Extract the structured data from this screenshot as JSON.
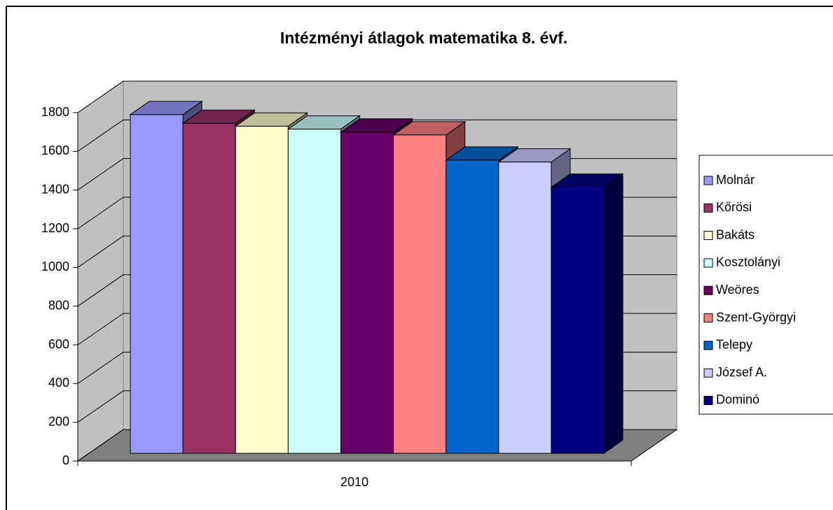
{
  "chart_data": {
    "type": "bar3d",
    "title": "Intézményi átlagok matematika 8. évf.",
    "categories": [
      "2010"
    ],
    "series": [
      {
        "name": "Molnár",
        "color": "#9999ff",
        "values": [
          1750
        ]
      },
      {
        "name": "Kőrösi",
        "color": "#993366",
        "values": [
          1705
        ]
      },
      {
        "name": "Bakáts",
        "color": "#ffffcc",
        "values": [
          1690
        ]
      },
      {
        "name": "Kosztolányi",
        "color": "#ccffff",
        "values": [
          1675
        ]
      },
      {
        "name": "Weöres",
        "color": "#660066",
        "values": [
          1660
        ]
      },
      {
        "name": "Szent-Györgyi",
        "color": "#ff8080",
        "values": [
          1645
        ]
      },
      {
        "name": "Telepy",
        "color": "#0066cc",
        "values": [
          1515
        ]
      },
      {
        "name": "József A.",
        "color": "#ccccff",
        "values": [
          1505
        ]
      },
      {
        "name": "Dominó",
        "color": "#000080",
        "values": [
          1375
        ]
      }
    ],
    "ylim": [
      0,
      1800
    ],
    "yticks": [
      0,
      200,
      400,
      600,
      800,
      1000,
      1200,
      1400,
      1600,
      1800
    ],
    "grid": true,
    "legend": "right"
  }
}
